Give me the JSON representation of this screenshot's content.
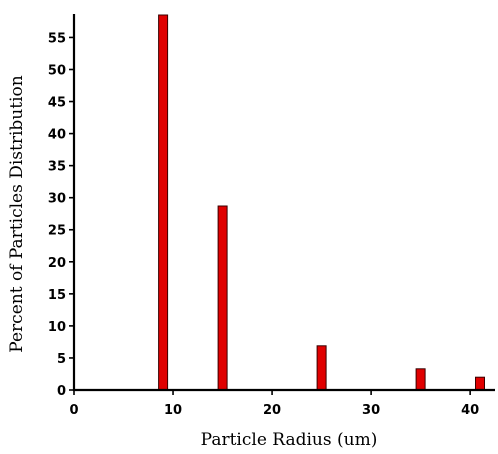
{
  "chart_data": {
    "type": "bar",
    "xlabel": "Particle Radius (um)",
    "ylabel": "Percent of Particles Distribution",
    "xlim": [
      0,
      41.5
    ],
    "ylim": [
      0,
      58.5
    ],
    "x_ticks": [
      0,
      10,
      20,
      30,
      40
    ],
    "y_ticks": [
      0,
      5,
      10,
      15,
      20,
      25,
      30,
      35,
      40,
      45,
      50,
      55
    ],
    "grid": false,
    "legend": "none",
    "bar_color": "#e00000",
    "series": [
      {
        "x": [
          9,
          15,
          25,
          35,
          41
        ],
        "values": [
          58.5,
          28.7,
          6.9,
          3.3,
          2.0
        ]
      }
    ]
  }
}
